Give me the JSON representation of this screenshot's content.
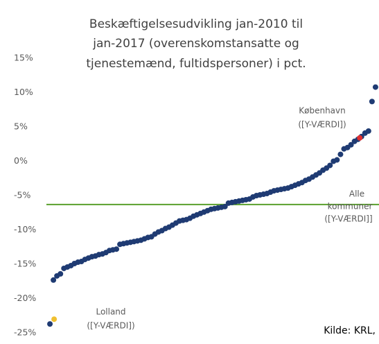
{
  "chart_data": {
    "type": "scatter",
    "title": [
      "Beskæftigelsesudvikling jan-2010 til",
      "jan-2017 (overenskomstansatte og",
      "tjenestemænd, fultidspersoner) i pct."
    ],
    "x": [
      1,
      2,
      3,
      4,
      5,
      6,
      7,
      8,
      9,
      10,
      11,
      12,
      13,
      14,
      15,
      16,
      17,
      18,
      19,
      20,
      21,
      22,
      23,
      24,
      25,
      26,
      27,
      28,
      29,
      30,
      31,
      32,
      33,
      34,
      35,
      36,
      37,
      38,
      39,
      40,
      41,
      42,
      43,
      44,
      45,
      46,
      47,
      48,
      49,
      50,
      51,
      52,
      53,
      54,
      55,
      56,
      57,
      58,
      59,
      60,
      61,
      62,
      63,
      64,
      65,
      66,
      67,
      68,
      69,
      70,
      71,
      72,
      73,
      74,
      75,
      76,
      77,
      78,
      79,
      80,
      81,
      82,
      83,
      84,
      85,
      86,
      87,
      88,
      89,
      90,
      91,
      92,
      93,
      94
    ],
    "values": [
      -23.7,
      -17.3,
      -16.7,
      -16.4,
      -15.6,
      -15.4,
      -15.2,
      -14.9,
      -14.7,
      -14.6,
      -14.3,
      -14.1,
      -13.9,
      -13.8,
      -13.6,
      -13.5,
      -13.3,
      -13.0,
      -12.9,
      -12.8,
      -12.1,
      -12.0,
      -11.9,
      -11.8,
      -11.7,
      -11.6,
      -11.5,
      -11.3,
      -11.1,
      -11.0,
      -10.6,
      -10.3,
      -10.1,
      -9.8,
      -9.6,
      -9.3,
      -9.0,
      -8.7,
      -8.6,
      -8.5,
      -8.3,
      -8.0,
      -7.8,
      -7.6,
      -7.4,
      -7.2,
      -7.0,
      -6.9,
      -6.8,
      -6.7,
      -6.6,
      -6.1,
      -6.0,
      -5.9,
      -5.8,
      -5.7,
      -5.6,
      -5.5,
      -5.2,
      -5.0,
      -4.9,
      -4.8,
      -4.7,
      -4.5,
      -4.3,
      -4.2,
      -4.1,
      -4.0,
      -3.9,
      -3.7,
      -3.5,
      -3.3,
      -3.1,
      -2.8,
      -2.6,
      -2.3,
      -2.0,
      -1.7,
      -1.3,
      -1.0,
      -0.6,
      0.0,
      0.2,
      1.0,
      1.8,
      2.0,
      2.4,
      2.9,
      3.2,
      3.6,
      4.1,
      4.4,
      8.7,
      10.8
    ],
    "color": "#1f3b73",
    "highlights": [
      {
        "x": 2.2,
        "value": -23.0,
        "color": "#f0c030",
        "label": [
          "Lolland",
          "([Y-VÆRDI])"
        ]
      },
      {
        "x": 89.5,
        "value": 3.4,
        "color": "#e03030",
        "label": [
          "København",
          "([Y-VÆRDI])"
        ]
      }
    ],
    "reference_line": {
      "value": -6.3,
      "color": "#5aa02c",
      "label": [
        "Alle",
        "kommuner",
        "([Y-VÆRDI]]"
      ]
    },
    "source": "Kilde: KRL,",
    "xlim": [
      0,
      95
    ],
    "ylim": [
      -25,
      15
    ],
    "yticks": [
      {
        "value": 15,
        "label": "15%"
      },
      {
        "value": 10,
        "label": "10%"
      },
      {
        "value": 5,
        "label": "5%"
      },
      {
        "value": 0,
        "label": "0%"
      },
      {
        "value": -5,
        "label": "-5%"
      },
      {
        "value": -10,
        "label": "-10%"
      },
      {
        "value": -15,
        "label": "-15%"
      },
      {
        "value": -20,
        "label": "-20%"
      },
      {
        "value": -25,
        "label": "-25%"
      }
    ],
    "grid": false
  }
}
